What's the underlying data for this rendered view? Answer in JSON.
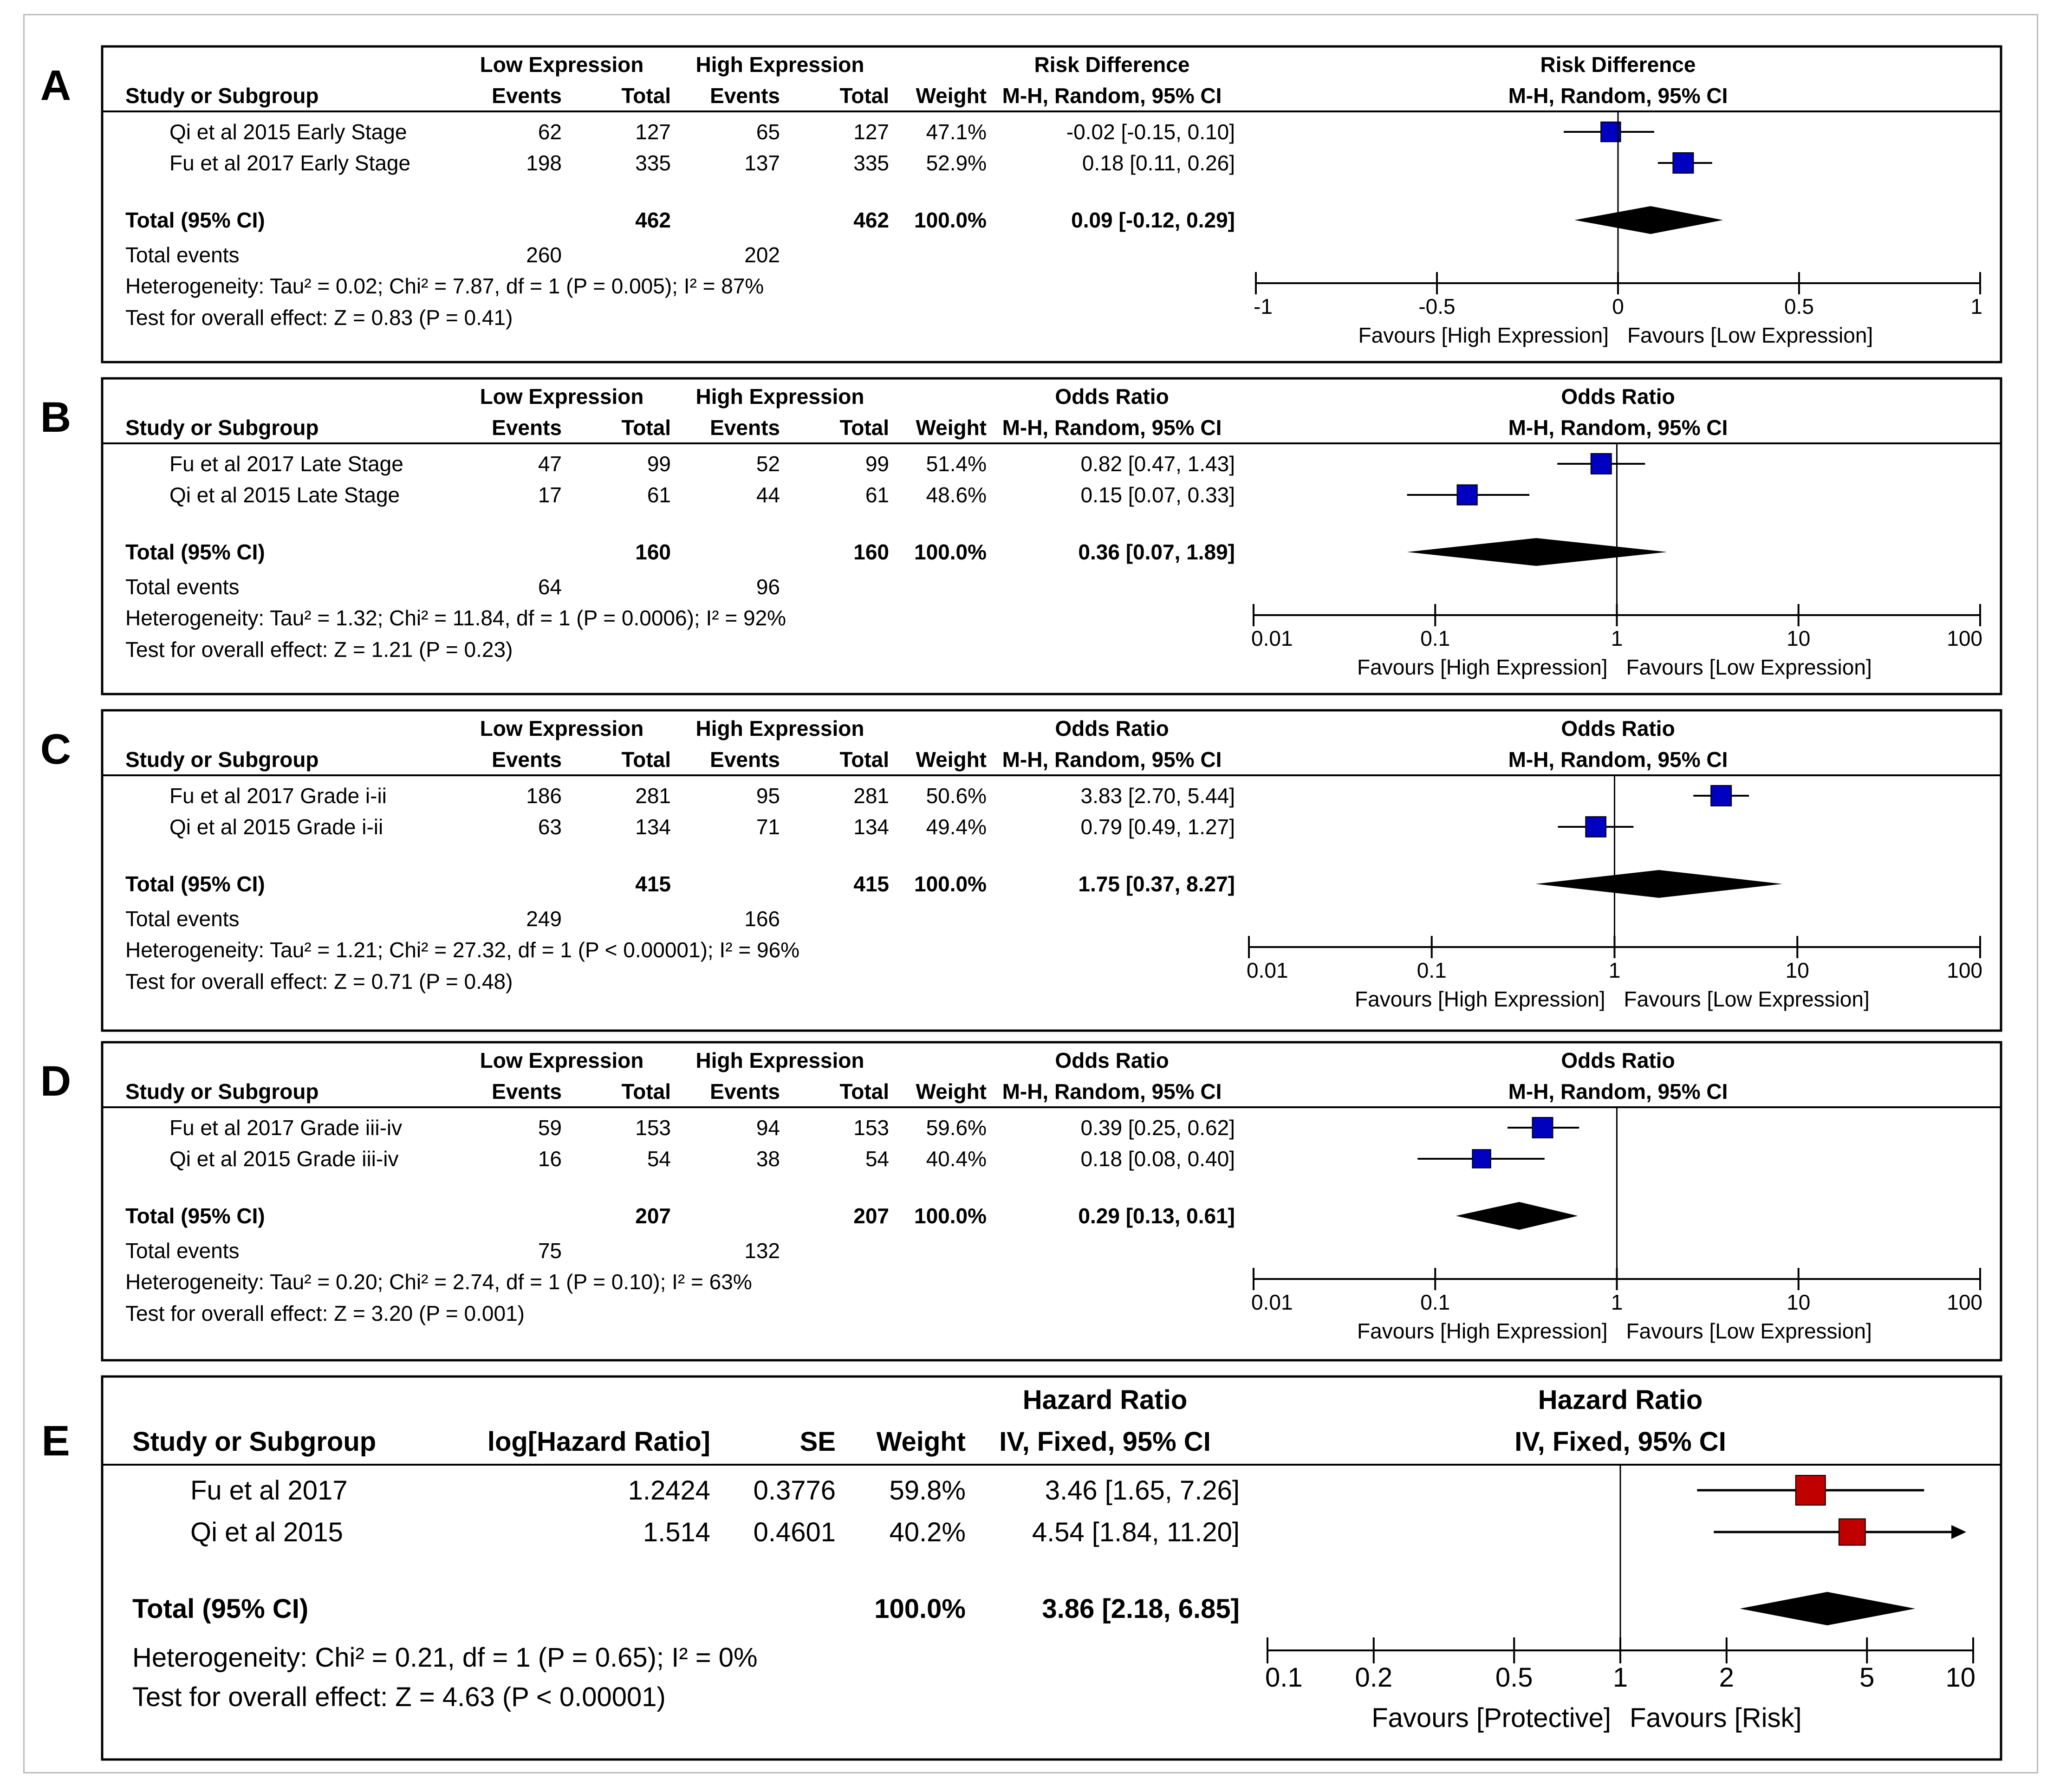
{
  "colors": {
    "study_marker": "#0000c0",
    "hr_marker": "#c00000",
    "frame": "#bdbdbd",
    "text": "#000000"
  },
  "chart_data": [
    {
      "panel": "A",
      "type": "forest",
      "measure_name": "Risk Difference",
      "measure_method": "M-H, Random, 95% CI",
      "group1": "Low Expression",
      "group2": "High Expression",
      "col_headers": {
        "study": "Study or Subgroup",
        "events": "Events",
        "total": "Total",
        "weight": "Weight"
      },
      "scale": "linear",
      "axis_min": -1,
      "axis_max": 1,
      "null_value": 0,
      "ticks": [
        -1,
        -0.5,
        0,
        0.5,
        1
      ],
      "tick_labels": [
        "-1",
        "-0.5",
        "0",
        "0.5",
        "1"
      ],
      "favours_left": "Favours [High Expression]",
      "favours_right": "Favours [Low Expression]",
      "studies": [
        {
          "name": "Qi et al 2015 Early Stage",
          "e1": "62",
          "t1": "127",
          "e2": "65",
          "t2": "127",
          "weight": "47.1%",
          "ci_text": "-0.02 [-0.15, 0.10]",
          "est": -0.02,
          "lo": -0.15,
          "hi": 0.1,
          "w": 47.1
        },
        {
          "name": "Fu et al 2017 Early Stage",
          "e1": "198",
          "t1": "335",
          "e2": "137",
          "t2": "335",
          "weight": "52.9%",
          "ci_text": "0.18 [0.11, 0.26]",
          "est": 0.18,
          "lo": 0.11,
          "hi": 0.26,
          "w": 52.9
        }
      ],
      "total": {
        "label": "Total (95% CI)",
        "t1": "462",
        "t2": "462",
        "weight": "100.0%",
        "ci_text": "0.09 [-0.12, 0.29]",
        "est": 0.09,
        "lo": -0.12,
        "hi": 0.29
      },
      "events": {
        "label": "Total events",
        "e1": "260",
        "e2": "202"
      },
      "heterogeneity": "Heterogeneity: Tau² = 0.02; Chi² = 7.87, df = 1 (P = 0.005); I² = 87%",
      "overall_effect": "Test for overall effect: Z = 0.83 (P = 0.41)"
    },
    {
      "panel": "B",
      "type": "forest",
      "measure_name": "Odds Ratio",
      "measure_method": "M-H, Random, 95% CI",
      "group1": "Low Expression",
      "group2": "High Expression",
      "col_headers": {
        "study": "Study or Subgroup",
        "events": "Events",
        "total": "Total",
        "weight": "Weight"
      },
      "scale": "log",
      "axis_min": 0.01,
      "axis_max": 100,
      "null_value": 1,
      "ticks": [
        0.01,
        0.1,
        1,
        10,
        100
      ],
      "tick_labels": [
        "0.01",
        "0.1",
        "1",
        "10",
        "100"
      ],
      "favours_left": "Favours [High Expression]",
      "favours_right": "Favours [Low Expression]",
      "studies": [
        {
          "name": "Fu et al 2017 Late Stage",
          "e1": "47",
          "t1": "99",
          "e2": "52",
          "t2": "99",
          "weight": "51.4%",
          "ci_text": "0.82 [0.47, 1.43]",
          "est": 0.82,
          "lo": 0.47,
          "hi": 1.43,
          "w": 51.4
        },
        {
          "name": "Qi et al 2015 Late Stage",
          "e1": "17",
          "t1": "61",
          "e2": "44",
          "t2": "61",
          "weight": "48.6%",
          "ci_text": "0.15 [0.07, 0.33]",
          "est": 0.15,
          "lo": 0.07,
          "hi": 0.33,
          "w": 48.6
        }
      ],
      "total": {
        "label": "Total (95% CI)",
        "t1": "160",
        "t2": "160",
        "weight": "100.0%",
        "ci_text": "0.36 [0.07, 1.89]",
        "est": 0.36,
        "lo": 0.07,
        "hi": 1.89
      },
      "events": {
        "label": "Total events",
        "e1": "64",
        "e2": "96"
      },
      "heterogeneity": "Heterogeneity: Tau² = 1.32; Chi² = 11.84, df = 1 (P = 0.0006); I² = 92%",
      "overall_effect": "Test for overall effect: Z = 1.21 (P = 0.23)"
    },
    {
      "panel": "C",
      "type": "forest",
      "measure_name": "Odds Ratio",
      "measure_method": "M-H, Random, 95% CI",
      "group1": "Low Expression",
      "group2": "High Expression",
      "col_headers": {
        "study": "Study or Subgroup",
        "events": "Events",
        "total": "Total",
        "weight": "Weight"
      },
      "scale": "log",
      "axis_min": 0.01,
      "axis_max": 100,
      "null_value": 1,
      "ticks": [
        0.01,
        0.1,
        1,
        10,
        100
      ],
      "tick_labels": [
        "0.01",
        "0.1",
        "1",
        "10",
        "100"
      ],
      "favours_left": "Favours [High Expression]",
      "favours_right": "Favours [Low Expression]",
      "studies": [
        {
          "name": "Fu et al 2017 Grade i-ii",
          "e1": "186",
          "t1": "281",
          "e2": "95",
          "t2": "281",
          "weight": "50.6%",
          "ci_text": "3.83 [2.70, 5.44]",
          "est": 3.83,
          "lo": 2.7,
          "hi": 5.44,
          "w": 50.6
        },
        {
          "name": "Qi et al 2015 Grade i-ii",
          "e1": "63",
          "t1": "134",
          "e2": "71",
          "t2": "134",
          "weight": "49.4%",
          "ci_text": "0.79 [0.49, 1.27]",
          "est": 0.79,
          "lo": 0.49,
          "hi": 1.27,
          "w": 49.4
        }
      ],
      "total": {
        "label": "Total (95% CI)",
        "t1": "415",
        "t2": "415",
        "weight": "100.0%",
        "ci_text": "1.75 [0.37, 8.27]",
        "est": 1.75,
        "lo": 0.37,
        "hi": 8.27
      },
      "events": {
        "label": "Total events",
        "e1": "249",
        "e2": "166"
      },
      "heterogeneity": "Heterogeneity: Tau² = 1.21; Chi² = 27.32, df = 1 (P < 0.00001); I² = 96%",
      "overall_effect": "Test for overall effect: Z = 0.71 (P = 0.48)"
    },
    {
      "panel": "D",
      "type": "forest",
      "measure_name": "Odds Ratio",
      "measure_method": "M-H, Random, 95% CI",
      "group1": "Low Expression",
      "group2": "High Expression",
      "col_headers": {
        "study": "Study or Subgroup",
        "events": "Events",
        "total": "Total",
        "weight": "Weight"
      },
      "scale": "log",
      "axis_min": 0.01,
      "axis_max": 100,
      "null_value": 1,
      "ticks": [
        0.01,
        0.1,
        1,
        10,
        100
      ],
      "tick_labels": [
        "0.01",
        "0.1",
        "1",
        "10",
        "100"
      ],
      "favours_left": "Favours [High Expression]",
      "favours_right": "Favours [Low Expression]",
      "studies": [
        {
          "name": "Fu et al 2017 Grade iii-iv",
          "e1": "59",
          "t1": "153",
          "e2": "94",
          "t2": "153",
          "weight": "59.6%",
          "ci_text": "0.39 [0.25, 0.62]",
          "est": 0.39,
          "lo": 0.25,
          "hi": 0.62,
          "w": 59.6
        },
        {
          "name": "Qi et al 2015 Grade iii-iv",
          "e1": "16",
          "t1": "54",
          "e2": "38",
          "t2": "54",
          "weight": "40.4%",
          "ci_text": "0.18 [0.08, 0.40]",
          "est": 0.18,
          "lo": 0.08,
          "hi": 0.4,
          "w": 40.4
        }
      ],
      "total": {
        "label": "Total (95% CI)",
        "t1": "207",
        "t2": "207",
        "weight": "100.0%",
        "ci_text": "0.29 [0.13, 0.61]",
        "est": 0.29,
        "lo": 0.13,
        "hi": 0.61
      },
      "events": {
        "label": "Total events",
        "e1": "75",
        "e2": "132"
      },
      "heterogeneity": "Heterogeneity: Tau² = 0.20; Chi² = 2.74, df = 1 (P = 0.10); I² = 63%",
      "overall_effect": "Test for overall effect: Z = 3.20 (P = 0.001)"
    },
    {
      "panel": "E",
      "type": "forest",
      "measure_name": "Hazard Ratio",
      "measure_method": "IV, Fixed, 95% CI",
      "col_headers": {
        "study": "Study or Subgroup",
        "loghr": "log[Hazard Ratio]",
        "se": "SE",
        "weight": "Weight"
      },
      "scale": "log",
      "axis_min": 0.1,
      "axis_max": 10,
      "null_value": 1,
      "ticks": [
        0.1,
        0.2,
        0.5,
        1,
        2,
        5,
        10
      ],
      "tick_labels": [
        "0.1",
        "0.2",
        "0.5",
        "1",
        "2",
        "5",
        "10"
      ],
      "favours_left": "Favours [Protective]",
      "favours_right": "Favours [Risk]",
      "studies": [
        {
          "name": "Fu et al 2017",
          "loghr": "1.2424",
          "se": "0.3776",
          "weight": "59.8%",
          "ci_text": "3.46 [1.65, 7.26]",
          "est": 3.46,
          "lo": 1.65,
          "hi": 7.26,
          "w": 59.8
        },
        {
          "name": "Qi et al 2015",
          "loghr": "1.514",
          "se": "0.4601",
          "weight": "40.2%",
          "ci_text": "4.54 [1.84, 11.20]",
          "est": 4.54,
          "lo": 1.84,
          "hi": 11.2,
          "w": 40.2
        }
      ],
      "total": {
        "label": "Total (95% CI)",
        "weight": "100.0%",
        "ci_text": "3.86 [2.18, 6.85]",
        "est": 3.86,
        "lo": 2.18,
        "hi": 6.85
      },
      "heterogeneity": "Heterogeneity: Chi² = 0.21, df = 1 (P = 0.65); I² = 0%",
      "overall_effect": "Test for overall effect: Z = 4.63 (P < 0.00001)"
    }
  ]
}
